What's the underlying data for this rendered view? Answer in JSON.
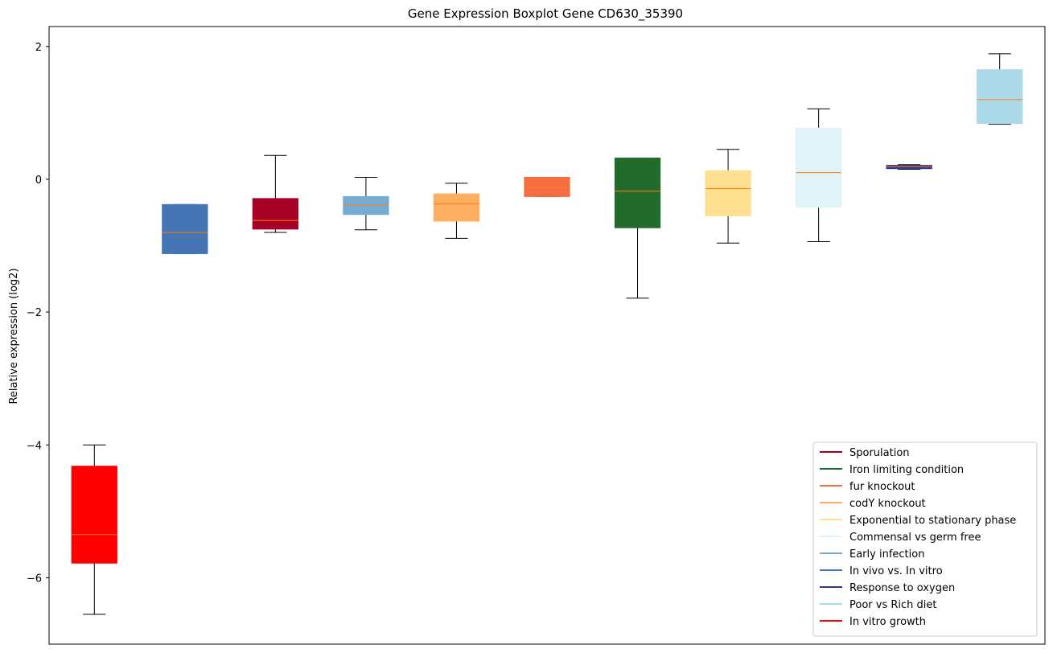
{
  "chart_data": {
    "type": "boxplot",
    "title": "Gene Expression Boxplot Gene CD630_35390",
    "xlabel": "",
    "ylabel": "Relative expression (log2)",
    "ylim": [
      -7.0,
      2.3
    ],
    "yticks": [
      2,
      0,
      -2,
      -4,
      -6
    ],
    "ytick_labels": [
      "2",
      "0",
      "−2",
      "−4",
      "−6"
    ],
    "median_color": "#ff7f0e",
    "boxes": [
      {
        "name": "In vitro growth",
        "color": "#ff0000",
        "whislo": -6.55,
        "q1": -5.78,
        "med": -5.35,
        "q3": -4.32,
        "whishi": -4.0
      },
      {
        "name": "In vivo vs. In vitro",
        "color": "#4575b4",
        "whislo": -1.12,
        "q1": -1.12,
        "med": -0.8,
        "q3": -0.38,
        "whishi": -0.38
      },
      {
        "name": "Sporulation",
        "color": "#a50026",
        "whislo": -0.8,
        "q1": -0.75,
        "med": -0.62,
        "q3": -0.29,
        "whishi": 0.36
      },
      {
        "name": "Early infection",
        "color": "#74add1",
        "whislo": -0.76,
        "q1": -0.53,
        "med": -0.39,
        "q3": -0.26,
        "whishi": 0.03
      },
      {
        "name": "codY knockout",
        "color": "#fdae61",
        "whislo": -0.89,
        "q1": -0.63,
        "med": -0.37,
        "q3": -0.22,
        "whishi": -0.06
      },
      {
        "name": "fur knockout",
        "color": "#f46d43",
        "whislo": -0.26,
        "q1": -0.26,
        "med": -0.12,
        "q3": 0.03,
        "whishi": 0.03
      },
      {
        "name": "Iron limiting condition",
        "color": "#226b2d",
        "whislo": -1.79,
        "q1": -0.73,
        "med": -0.18,
        "q3": 0.32,
        "whishi": 0.32
      },
      {
        "name": "Exponential to stationary phase",
        "color": "#fee090",
        "whislo": -0.96,
        "q1": -0.55,
        "med": -0.14,
        "q3": 0.13,
        "whishi": 0.45
      },
      {
        "name": "Commensal vs germ free",
        "color": "#e0f3f8",
        "whislo": -0.94,
        "q1": -0.42,
        "med": 0.1,
        "q3": 0.77,
        "whishi": 1.06
      },
      {
        "name": "Response to oxygen",
        "color": "#313695",
        "whislo": 0.15,
        "q1": 0.16,
        "med": 0.19,
        "q3": 0.21,
        "whishi": 0.22
      },
      {
        "name": "Poor vs Rich diet",
        "color": "#abd9e9",
        "whislo": 0.83,
        "q1": 0.84,
        "med": 1.2,
        "q3": 1.65,
        "whishi": 1.89
      }
    ],
    "legend": {
      "location": "lower right",
      "entries": [
        {
          "label": "Sporulation",
          "color": "#a50026"
        },
        {
          "label": "Iron limiting condition",
          "color": "#226b2d"
        },
        {
          "label": "fur knockout",
          "color": "#f46d43"
        },
        {
          "label": "codY knockout",
          "color": "#fdae61"
        },
        {
          "label": "Exponential to stationary phase",
          "color": "#fee090"
        },
        {
          "label": "Commensal vs germ free",
          "color": "#e0f3f8"
        },
        {
          "label": "Early infection",
          "color": "#74add1"
        },
        {
          "label": "In vivo vs. In vitro",
          "color": "#4575b4"
        },
        {
          "label": "Response to oxygen",
          "color": "#313695"
        },
        {
          "label": "Poor vs Rich diet",
          "color": "#abd9e9"
        },
        {
          "label": "In vitro growth",
          "color": "#ff0000"
        }
      ]
    }
  }
}
